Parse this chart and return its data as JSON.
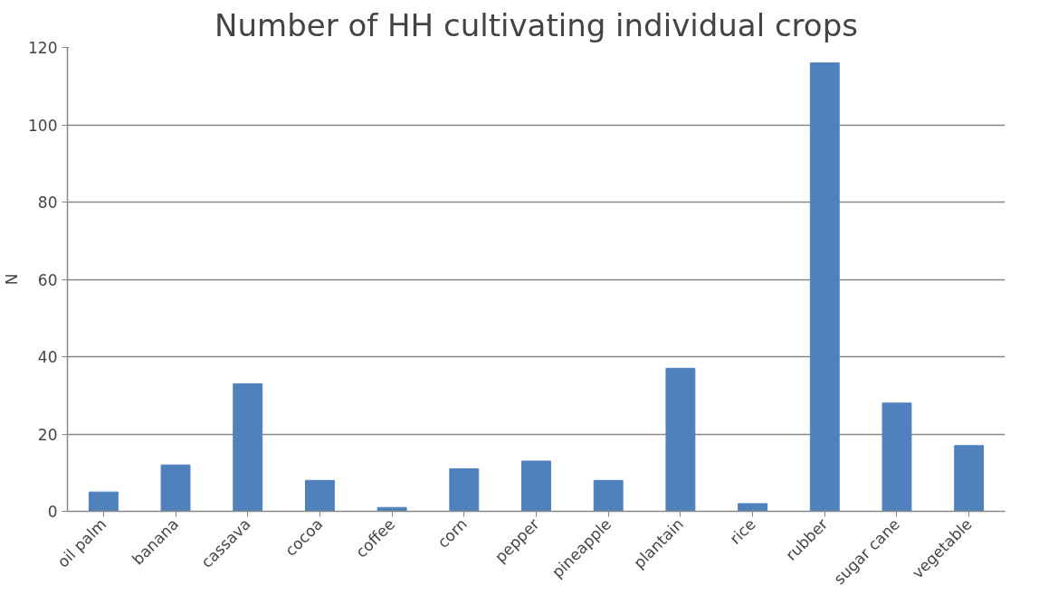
{
  "chart_data": {
    "type": "bar",
    "title": "Number of HH cultivating individual crops",
    "ylabel": "N",
    "categories": [
      "oil palm",
      "banana",
      "cassava",
      "cocoa",
      "coffee",
      "corn",
      "pepper",
      "pineapple",
      "plantain",
      "rice",
      "rubber",
      "sugar cane",
      "vegetable"
    ],
    "values": [
      5,
      12,
      33,
      8,
      1,
      11,
      13,
      8,
      37,
      2,
      116,
      28,
      17
    ],
    "color": "#4f81bd",
    "ylim": [
      0,
      120
    ],
    "yticks": [
      0,
      20,
      40,
      60,
      80,
      100,
      120
    ],
    "grid": "y"
  }
}
